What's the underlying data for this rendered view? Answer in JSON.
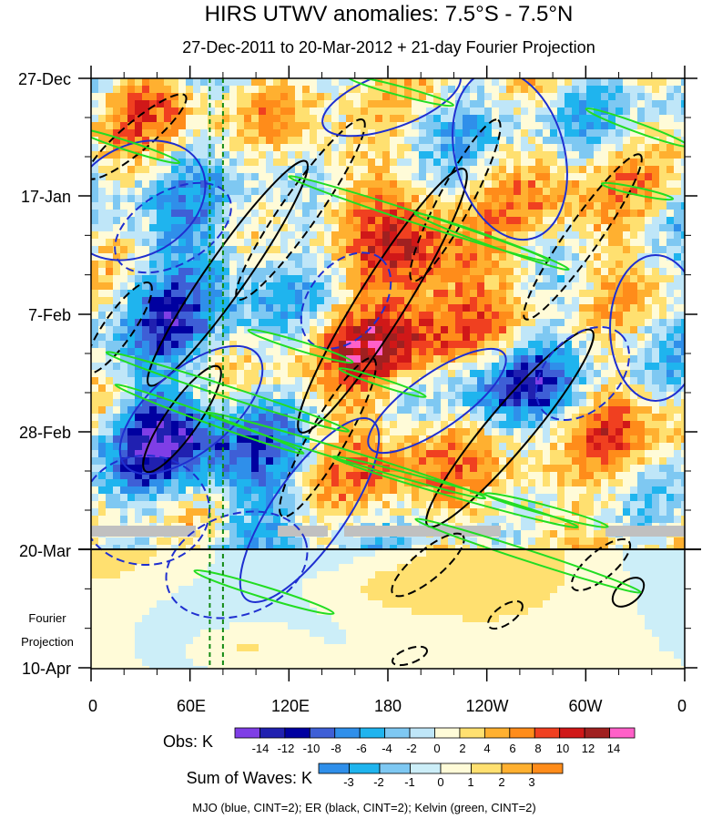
{
  "chart_data": {
    "type": "heatmap",
    "title": "HIRS UTWV anomalies: 7.5°S - 7.5°N",
    "subtitle": "27-Dec-2011 to 20-Mar-2012 + 21-day Fourier Projection",
    "y_ticks": [
      "27-Dec",
      "17-Jan",
      "7-Feb",
      "28-Feb",
      "20-Mar",
      "10-Apr"
    ],
    "x_ticks": [
      "0",
      "60E",
      "120E",
      "180",
      "120W",
      "60W",
      "0"
    ],
    "projection_label_1": "Fourier",
    "projection_label_2": "Projection",
    "obs_label": "Obs: K",
    "obs_colorbar_labels": [
      "-14",
      "-12",
      "-10",
      "-8",
      "-6",
      "-4",
      "-2",
      "0",
      "2",
      "4",
      "6",
      "8",
      "10",
      "12",
      "14"
    ],
    "obs_colors": [
      "#7f3ee6",
      "#2020b0",
      "#0000a0",
      "#3e5fd6",
      "#2f8fea",
      "#1fb4ee",
      "#7ec8f2",
      "#bfe6f8",
      "#fffbd8",
      "#ffe070",
      "#ffb030",
      "#ff8c1a",
      "#f04020",
      "#d01818",
      "#a02020",
      "#ff60c8"
    ],
    "waves_label": "Sum of Waves: K",
    "waves_colorbar_labels": [
      "-3",
      "-2",
      "-1",
      "0",
      "1",
      "2",
      "3"
    ],
    "waves_colors": [
      "#2f8fea",
      "#1fb4ee",
      "#7ec8f2",
      "#cceef8",
      "#fffbd8",
      "#ffe070",
      "#ffb030",
      "#ff8c1a"
    ],
    "footnote": "MJO (blue, CINT=2); ER (black, CINT=2); Kelvin (green, CINT=2)",
    "mjo_color": "#1f2fd0",
    "er_color": "#000000",
    "kelvin_color": "#22dd22",
    "reference_lines_lon": [
      72,
      80
    ],
    "missing_data_color": "#c0c0c0"
  }
}
